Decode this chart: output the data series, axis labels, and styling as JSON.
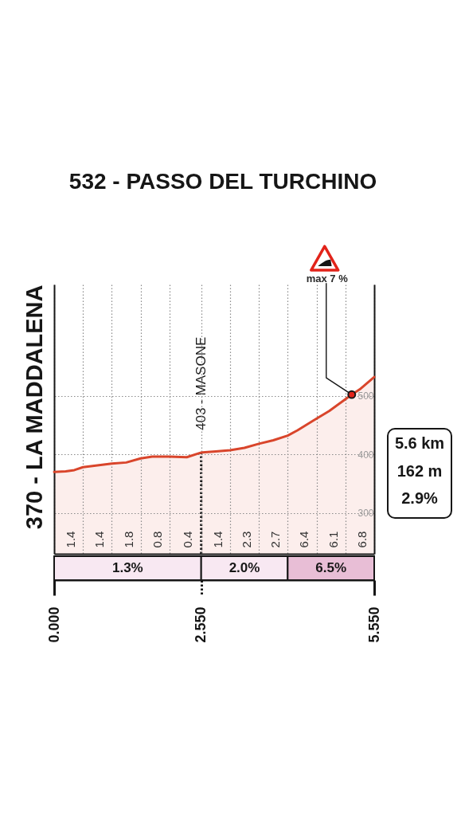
{
  "chart_data": [
    {
      "type": "area",
      "title": "532 - PASSO DEL TURCHINO",
      "ylabel": "370 - LA MADDALENA",
      "x": [
        0,
        0.2,
        0.35,
        0.5,
        0.75,
        1,
        1.25,
        1.5,
        1.7,
        2,
        2.3,
        2.55,
        2.8,
        3.05,
        3.3,
        3.55,
        3.8,
        4.05,
        4.22,
        4.5,
        4.77,
        5.05,
        5.16,
        5.3,
        5.55
      ],
      "series": [
        {
          "color": "#d9452b",
          "values": [
            370,
            371,
            373,
            378,
            381,
            384,
            386,
            393,
            396,
            396,
            395,
            403,
            405,
            407,
            411,
            418,
            424,
            432,
            441,
            458,
            474,
            494,
            502,
            511,
            532
          ]
        }
      ],
      "xlim": [
        0,
        5.55
      ],
      "xticks": [
        0,
        0.5,
        1,
        1.5,
        2,
        2.55,
        3.05,
        3.55,
        4.05,
        4.55,
        5.05,
        5.55
      ],
      "ylim": [
        230,
        690
      ],
      "yticks": [
        300,
        400,
        500
      ],
      "tick_labels": "y",
      "grid": true,
      "ref_lines": [
        {
          "axis": "x",
          "value": 2.55,
          "label": "403 - MASONE",
          "color": "#1a1a1a",
          "line_style": "dotted"
        }
      ],
      "annotations": [
        {
          "text": "max 7 %",
          "x": 5.16,
          "y": 502
        },
        "1.4",
        "1.4",
        "1.8",
        "0.8",
        "0.4",
        "1.4",
        "2.3",
        "2.7",
        "6.4",
        "6.1",
        "6.8",
        "5.6 km",
        "162 m",
        "2.9%"
      ]
    },
    {
      "type": "bar",
      "orientation": "horizontal",
      "stacked": true,
      "categories": [
        null
      ],
      "series": [
        {
          "color": "#f8e8f2",
          "values": [
            2.55
          ]
        },
        {
          "color": "#f8e8f2",
          "values": [
            1.5
          ]
        },
        {
          "color": "#e8bed6",
          "values": [
            1.5
          ]
        }
      ],
      "xlim": [
        0,
        5.55
      ],
      "xticks": [
        {
          "value": 0,
          "label": "0.000"
        },
        {
          "value": 2.55,
          "label": "2.550"
        },
        {
          "value": 5.55,
          "label": "5.550"
        }
      ],
      "tick_labels": "x",
      "annotations": [
        "1.3%",
        "2.0%",
        "6.5%"
      ]
    }
  ]
}
